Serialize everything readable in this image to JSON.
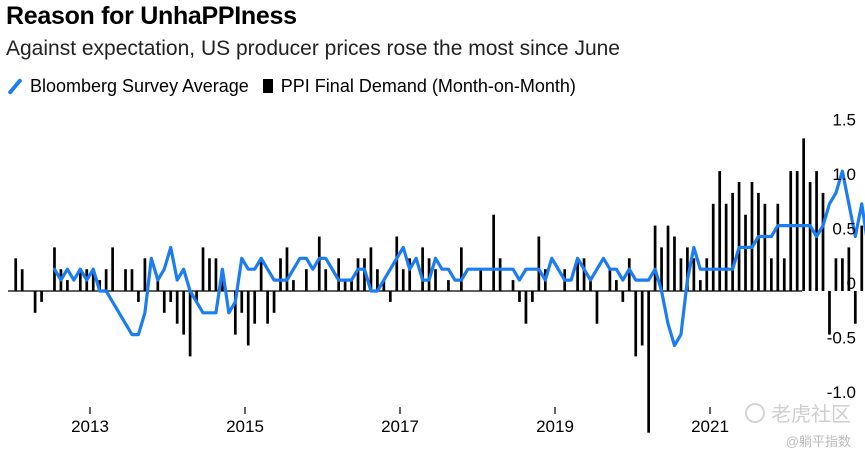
{
  "header": {
    "title": "Reason for UnhaPPIness",
    "subtitle": "Against expectation, US producer prices rose the most since June"
  },
  "legend": {
    "line_label": "Bloomberg Survey Average",
    "bar_label": "PPI Final Demand (Month-on-Month)"
  },
  "watermark": {
    "main": "老虎社区",
    "sub": "@躺平指数"
  },
  "colors": {
    "line": "#1c7cf2",
    "bars": "#000000",
    "axis": "#000000"
  },
  "chart_data": {
    "type": "bar",
    "title": "Reason for UnhaPPIness",
    "subtitle": "Against expectation, US producer prices rose the most since June",
    "x_start": "2012-01",
    "x_end": "2021-10",
    "ylim": [
      -1.15,
      1.65
    ],
    "yticks": [
      1.5,
      1.0,
      0.5,
      0,
      -0.5,
      -1.0
    ],
    "ytick_labels": [
      "1.5",
      "1.0",
      "0.5",
      "0",
      "-0.5",
      "-1.0"
    ],
    "xticks": [
      "2013",
      "2015",
      "2017",
      "2019",
      "2021"
    ],
    "y_axis_position": "right",
    "grid": false,
    "legend_position": "top-left",
    "series": [
      {
        "name": "PPI Final Demand (Month-on-Month)",
        "type": "bar",
        "values": [
          0.3,
          0.2,
          0.0,
          -0.2,
          -0.1,
          0.0,
          0.4,
          0.2,
          0.1,
          0.0,
          0.2,
          0.2,
          0.2,
          0.1,
          0.2,
          0.4,
          0.0,
          0.2,
          0.2,
          -0.1,
          0.3,
          0.0,
          0.1,
          -0.2,
          -0.1,
          -0.3,
          -0.4,
          -0.6,
          -0.1,
          0.4,
          0.3,
          0.3,
          0.1,
          0.0,
          -0.4,
          -0.2,
          -0.5,
          -0.3,
          0.3,
          -0.3,
          -0.2,
          0.3,
          0.4,
          0.1,
          0.0,
          0.2,
          0.0,
          0.5,
          0.2,
          0.0,
          0.3,
          0.1,
          0.1,
          0.3,
          0.3,
          0.4,
          0.2,
          0.1,
          -0.1,
          0.5,
          0.2,
          0.3,
          0.0,
          0.4,
          0.3,
          0.2,
          0.0,
          0.1,
          0.0,
          0.4,
          0.0,
          0.0,
          0.2,
          0.0,
          0.7,
          0.3,
          0.0,
          0.1,
          -0.1,
          -0.3,
          -0.1,
          0.5,
          0.2,
          0.0,
          0.0,
          0.2,
          0.0,
          0.3,
          0.3,
          0.1,
          -0.3,
          0.0,
          0.2,
          0.1,
          -0.1,
          0.3,
          -0.6,
          -0.5,
          -1.3,
          0.6,
          0.4,
          0.6,
          0.5,
          0.3,
          0.4,
          0.3,
          0.1,
          0.3,
          0.8,
          1.1,
          0.8,
          0.9,
          1.0,
          0.7,
          1.0,
          0.9,
          0.8,
          0.3,
          0.8,
          0.3,
          1.1,
          1.1,
          1.4,
          1.0,
          1.1,
          0.9,
          -0.4,
          0.3,
          0.3,
          0.4,
          -0.3,
          0.6
        ]
      },
      {
        "name": "Bloomberg Survey Average",
        "type": "line",
        "values": [
          0.2,
          0.1,
          0.2,
          0.1,
          0.2,
          0.1,
          0.2,
          0.0,
          0.0,
          -0.1,
          -0.2,
          -0.3,
          -0.4,
          -0.4,
          -0.2,
          0.3,
          0.1,
          0.2,
          0.4,
          0.1,
          0.2,
          0.0,
          -0.1,
          -0.2,
          -0.2,
          -0.2,
          0.2,
          -0.2,
          -0.1,
          0.3,
          0.2,
          0.2,
          0.3,
          0.2,
          0.1,
          0.1,
          0.1,
          0.2,
          0.3,
          0.3,
          0.2,
          0.3,
          0.3,
          0.2,
          0.1,
          0.1,
          0.1,
          0.2,
          0.2,
          0.0,
          0.0,
          0.1,
          0.2,
          0.3,
          0.4,
          0.2,
          0.3,
          0.1,
          0.1,
          0.3,
          0.2,
          0.2,
          0.1,
          0.1,
          0.2,
          0.2,
          0.2,
          0.2,
          0.2,
          0.2,
          0.2,
          0.2,
          0.1,
          0.2,
          0.2,
          0.2,
          0.1,
          0.3,
          0.2,
          0.1,
          0.1,
          0.3,
          0.2,
          0.1,
          0.2,
          0.3,
          0.2,
          0.2,
          0.1,
          0.2,
          0.1,
          0.1,
          0.1,
          0.2,
          0.0,
          -0.3,
          -0.5,
          -0.4,
          0.1,
          0.4,
          0.2,
          0.2,
          0.2,
          0.2,
          0.2,
          0.2,
          0.4,
          0.4,
          0.4,
          0.5,
          0.5,
          0.5,
          0.6,
          0.6,
          0.6,
          0.6,
          0.6,
          0.6,
          0.5,
          0.6,
          0.8,
          0.9,
          1.1,
          0.8,
          0.5,
          0.8,
          0.4,
          0.1,
          -0.1,
          0.1,
          0.4,
          0.3,
          -0.1,
          0.4
        ]
      }
    ]
  }
}
